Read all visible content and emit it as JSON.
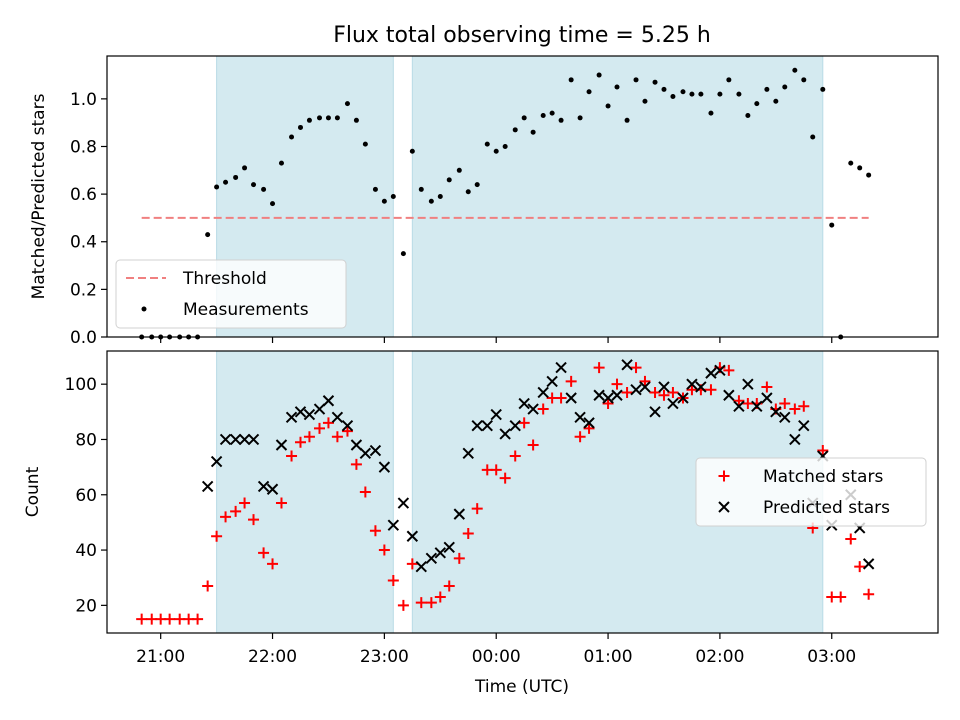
{
  "title": "Flux total observing time = 5.25 h",
  "xlabel": "Time (UTC)",
  "x_ticks": [
    {
      "t": 21,
      "label": "21:00"
    },
    {
      "t": 22,
      "label": "22:00"
    },
    {
      "t": 23,
      "label": "23:00"
    },
    {
      "t": 24,
      "label": "00:00"
    },
    {
      "t": 25,
      "label": "01:00"
    },
    {
      "t": 26,
      "label": "02:00"
    },
    {
      "t": 27,
      "label": "03:00"
    }
  ],
  "x_range_hours": [
    20.52,
    27.95
  ],
  "colors": {
    "shade": "#d4eaf0",
    "threshold": "#f08080",
    "measurement": "#000000",
    "matched": "#ff0000",
    "predicted": "#000000"
  },
  "chart_data": [
    {
      "type": "scatter",
      "ylabel": "Matched/Predicted stars",
      "ylim": [
        0,
        1.18
      ],
      "y_ticks": [
        {
          "v": 0,
          "label": "0.0"
        },
        {
          "v": 0.2,
          "label": "0.2"
        },
        {
          "v": 0.4,
          "label": "0.4"
        },
        {
          "v": 0.6,
          "label": "0.6"
        },
        {
          "v": 0.8,
          "label": "0.8"
        },
        {
          "v": 1.0,
          "label": "1.0"
        }
      ],
      "shaded_intervals_hours": [
        [
          21.5,
          23.08
        ],
        [
          23.25,
          26.92
        ]
      ],
      "threshold": {
        "name": "Threshold",
        "value": 0.5,
        "x_range_hours": [
          20.83,
          27.33
        ]
      },
      "legend": {
        "position": "lower-left",
        "entries": [
          "Threshold",
          "Measurements"
        ]
      },
      "series": [
        {
          "name": "Measurements",
          "points": [
            [
              20.83,
              0.0
            ],
            [
              20.92,
              0.0
            ],
            [
              21.0,
              0.0
            ],
            [
              21.08,
              0.0
            ],
            [
              21.17,
              0.0
            ],
            [
              21.25,
              0.0
            ],
            [
              21.33,
              0.0
            ],
            [
              21.42,
              0.43
            ],
            [
              21.5,
              0.63
            ],
            [
              21.58,
              0.65
            ],
            [
              21.67,
              0.67
            ],
            [
              21.75,
              0.71
            ],
            [
              21.83,
              0.64
            ],
            [
              21.92,
              0.62
            ],
            [
              22.0,
              0.56
            ],
            [
              22.08,
              0.73
            ],
            [
              22.17,
              0.84
            ],
            [
              22.25,
              0.88
            ],
            [
              22.33,
              0.91
            ],
            [
              22.42,
              0.92
            ],
            [
              22.5,
              0.92
            ],
            [
              22.58,
              0.92
            ],
            [
              22.67,
              0.98
            ],
            [
              22.75,
              0.91
            ],
            [
              22.83,
              0.81
            ],
            [
              22.92,
              0.62
            ],
            [
              23.0,
              0.57
            ],
            [
              23.08,
              0.59
            ],
            [
              23.17,
              0.35
            ],
            [
              23.25,
              0.78
            ],
            [
              23.33,
              0.62
            ],
            [
              23.42,
              0.57
            ],
            [
              23.5,
              0.59
            ],
            [
              23.58,
              0.66
            ],
            [
              23.67,
              0.7
            ],
            [
              23.75,
              0.61
            ],
            [
              23.83,
              0.64
            ],
            [
              23.92,
              0.81
            ],
            [
              24.0,
              0.78
            ],
            [
              24.08,
              0.8
            ],
            [
              24.17,
              0.87
            ],
            [
              24.25,
              0.92
            ],
            [
              24.33,
              0.86
            ],
            [
              24.42,
              0.93
            ],
            [
              24.5,
              0.94
            ],
            [
              24.58,
              0.91
            ],
            [
              24.67,
              1.08
            ],
            [
              24.75,
              0.92
            ],
            [
              24.83,
              1.03
            ],
            [
              24.92,
              1.1
            ],
            [
              25.0,
              0.97
            ],
            [
              25.08,
              1.05
            ],
            [
              25.17,
              0.91
            ],
            [
              25.25,
              1.08
            ],
            [
              25.33,
              0.99
            ],
            [
              25.42,
              1.07
            ],
            [
              25.5,
              1.04
            ],
            [
              25.58,
              1.01
            ],
            [
              25.67,
              1.03
            ],
            [
              25.75,
              1.02
            ],
            [
              25.83,
              1.02
            ],
            [
              25.92,
              0.94
            ],
            [
              26.0,
              1.02
            ],
            [
              26.08,
              1.08
            ],
            [
              26.17,
              1.02
            ],
            [
              26.25,
              0.93
            ],
            [
              26.33,
              0.98
            ],
            [
              26.42,
              1.04
            ],
            [
              26.5,
              0.99
            ],
            [
              26.58,
              1.05
            ],
            [
              26.67,
              1.12
            ],
            [
              26.75,
              1.08
            ],
            [
              26.83,
              0.84
            ],
            [
              26.92,
              1.04
            ],
            [
              27.0,
              0.47
            ],
            [
              27.08,
              0.0
            ],
            [
              27.17,
              0.73
            ],
            [
              27.25,
              0.71
            ],
            [
              27.33,
              0.68
            ]
          ]
        }
      ]
    },
    {
      "type": "scatter",
      "ylabel": "Count",
      "ylim": [
        10,
        112
      ],
      "y_ticks": [
        {
          "v": 20,
          "label": "20"
        },
        {
          "v": 40,
          "label": "40"
        },
        {
          "v": 60,
          "label": "60"
        },
        {
          "v": 80,
          "label": "80"
        },
        {
          "v": 100,
          "label": "100"
        }
      ],
      "shaded_intervals_hours": [
        [
          21.5,
          23.08
        ],
        [
          23.25,
          26.92
        ]
      ],
      "legend": {
        "position": "center-right",
        "entries": [
          "Matched stars",
          "Predicted stars"
        ]
      },
      "series": [
        {
          "name": "Matched stars",
          "points": [
            [
              20.83,
              15
            ],
            [
              20.92,
              15
            ],
            [
              21.0,
              15
            ],
            [
              21.08,
              15
            ],
            [
              21.17,
              15
            ],
            [
              21.25,
              15
            ],
            [
              21.33,
              15
            ],
            [
              21.42,
              27
            ],
            [
              21.5,
              45
            ],
            [
              21.58,
              52
            ],
            [
              21.67,
              54
            ],
            [
              21.75,
              57
            ],
            [
              21.83,
              51
            ],
            [
              21.92,
              39
            ],
            [
              22.0,
              35
            ],
            [
              22.08,
              57
            ],
            [
              22.17,
              74
            ],
            [
              22.25,
              79
            ],
            [
              22.33,
              81
            ],
            [
              22.42,
              84
            ],
            [
              22.5,
              86
            ],
            [
              22.58,
              81
            ],
            [
              22.67,
              83
            ],
            [
              22.75,
              71
            ],
            [
              22.83,
              61
            ],
            [
              22.92,
              47
            ],
            [
              23.0,
              40
            ],
            [
              23.08,
              29
            ],
            [
              23.17,
              20
            ],
            [
              23.25,
              35
            ],
            [
              23.33,
              21
            ],
            [
              23.42,
              21
            ],
            [
              23.5,
              23
            ],
            [
              23.58,
              27
            ],
            [
              23.67,
              37
            ],
            [
              23.75,
              46
            ],
            [
              23.83,
              55
            ],
            [
              23.92,
              69
            ],
            [
              24.0,
              69
            ],
            [
              24.08,
              66
            ],
            [
              24.17,
              74
            ],
            [
              24.25,
              86
            ],
            [
              24.33,
              78
            ],
            [
              24.42,
              91
            ],
            [
              24.5,
              95
            ],
            [
              24.58,
              95
            ],
            [
              24.67,
              101
            ],
            [
              24.75,
              81
            ],
            [
              24.83,
              84
            ],
            [
              24.92,
              106
            ],
            [
              25.0,
              93
            ],
            [
              25.08,
              100
            ],
            [
              25.17,
              97
            ],
            [
              25.25,
              106
            ],
            [
              25.33,
              101
            ],
            [
              25.42,
              97
            ],
            [
              25.5,
              96
            ],
            [
              25.58,
              97
            ],
            [
              25.67,
              95
            ],
            [
              25.75,
              98
            ],
            [
              25.83,
              98
            ],
            [
              25.92,
              98
            ],
            [
              26.0,
              106
            ],
            [
              26.08,
              105
            ],
            [
              26.17,
              94
            ],
            [
              26.25,
              93
            ],
            [
              26.33,
              93
            ],
            [
              26.42,
              99
            ],
            [
              26.5,
              91
            ],
            [
              26.58,
              93
            ],
            [
              26.67,
              91
            ],
            [
              26.75,
              92
            ],
            [
              26.83,
              48
            ],
            [
              26.92,
              76
            ],
            [
              27.0,
              23
            ],
            [
              27.08,
              23
            ],
            [
              27.17,
              44
            ],
            [
              27.25,
              34
            ],
            [
              27.33,
              24
            ]
          ]
        },
        {
          "name": "Predicted stars",
          "points": [
            [
              21.42,
              63
            ],
            [
              21.5,
              72
            ],
            [
              21.58,
              80
            ],
            [
              21.67,
              80
            ],
            [
              21.75,
              80
            ],
            [
              21.83,
              80
            ],
            [
              21.92,
              63
            ],
            [
              22.0,
              62
            ],
            [
              22.08,
              78
            ],
            [
              22.17,
              88
            ],
            [
              22.25,
              90
            ],
            [
              22.33,
              89
            ],
            [
              22.42,
              91
            ],
            [
              22.5,
              94
            ],
            [
              22.58,
              88
            ],
            [
              22.67,
              85
            ],
            [
              22.75,
              78
            ],
            [
              22.83,
              75
            ],
            [
              22.92,
              76
            ],
            [
              23.0,
              70
            ],
            [
              23.08,
              49
            ],
            [
              23.17,
              57
            ],
            [
              23.25,
              45
            ],
            [
              23.33,
              34
            ],
            [
              23.42,
              37
            ],
            [
              23.5,
              39
            ],
            [
              23.58,
              41
            ],
            [
              23.67,
              53
            ],
            [
              23.75,
              75
            ],
            [
              23.83,
              85
            ],
            [
              23.92,
              85
            ],
            [
              24.0,
              89
            ],
            [
              24.08,
              82
            ],
            [
              24.17,
              85
            ],
            [
              24.25,
              93
            ],
            [
              24.33,
              91
            ],
            [
              24.42,
              97
            ],
            [
              24.5,
              101
            ],
            [
              24.58,
              106
            ],
            [
              24.67,
              95
            ],
            [
              24.75,
              88
            ],
            [
              24.83,
              86
            ],
            [
              24.92,
              96
            ],
            [
              25.0,
              95
            ],
            [
              25.08,
              96
            ],
            [
              25.17,
              107
            ],
            [
              25.25,
              98
            ],
            [
              25.33,
              99
            ],
            [
              25.42,
              90
            ],
            [
              25.5,
              99
            ],
            [
              25.58,
              93
            ],
            [
              25.67,
              95
            ],
            [
              25.75,
              100
            ],
            [
              25.83,
              99
            ],
            [
              25.92,
              104
            ],
            [
              26.0,
              105
            ],
            [
              26.08,
              96
            ],
            [
              26.17,
              92
            ],
            [
              26.25,
              100
            ],
            [
              26.33,
              92
            ],
            [
              26.42,
              95
            ],
            [
              26.5,
              90
            ],
            [
              26.58,
              88
            ],
            [
              26.67,
              80
            ],
            [
              26.75,
              85
            ],
            [
              26.83,
              57
            ],
            [
              26.92,
              74
            ],
            [
              27.0,
              49
            ],
            [
              27.17,
              60
            ],
            [
              27.25,
              48
            ],
            [
              27.33,
              35
            ]
          ]
        }
      ]
    }
  ]
}
